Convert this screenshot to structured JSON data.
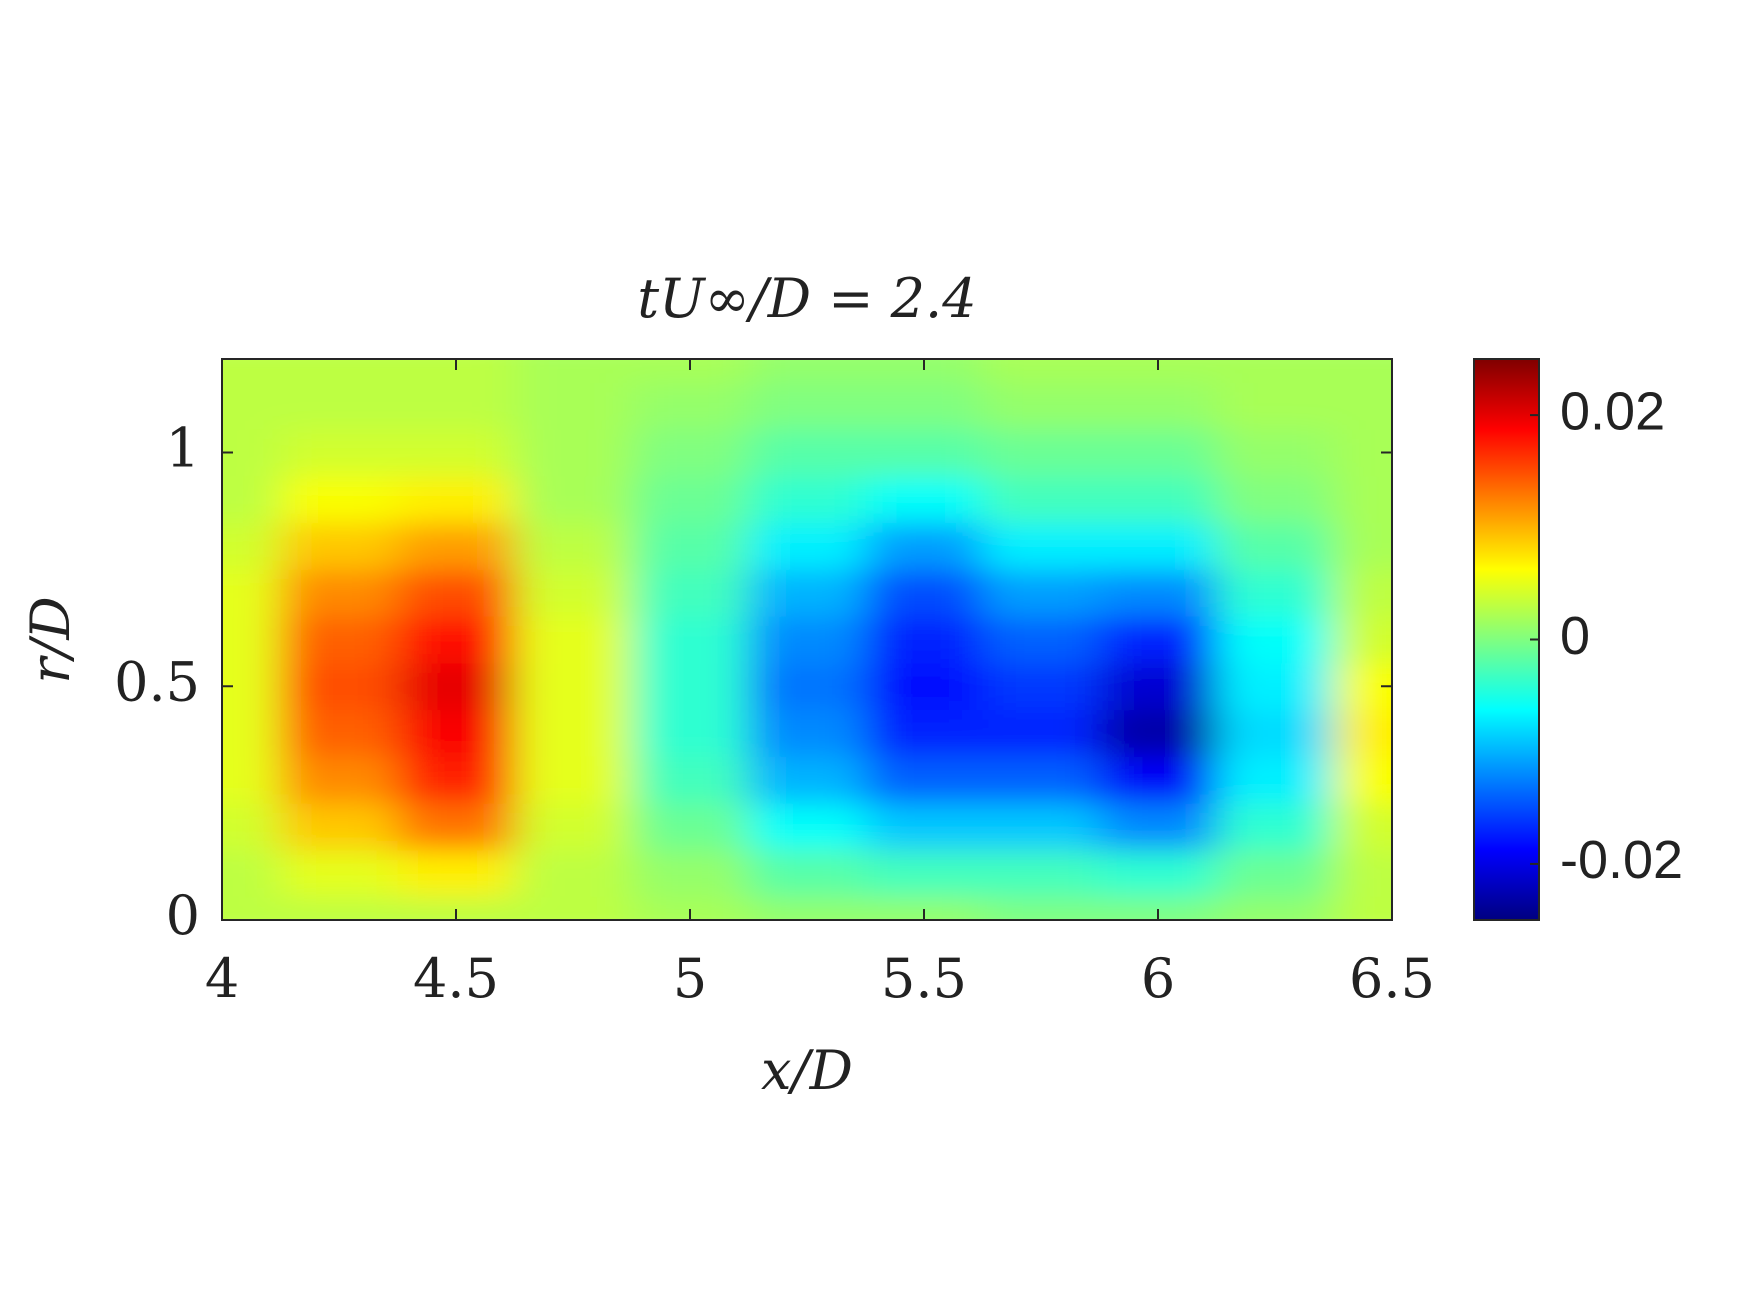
{
  "chart_data": {
    "type": "contour",
    "title": "tU∞/D = 2.4",
    "x_label": "x/D",
    "y_label": "r/D",
    "x": [
      4,
      4.25,
      4.5,
      4.75,
      5,
      5.25,
      5.5,
      5.75,
      6,
      6.25,
      6.5
    ],
    "y": [
      0,
      0.1,
      0.2,
      0.3,
      0.4,
      0.5,
      0.6,
      0.7,
      0.8,
      0.9,
      1.0,
      1.1,
      1.2
    ],
    "z": [
      [
        0.003,
        0.003,
        0.003,
        0.003,
        0.002,
        0.001,
        0.001,
        0.0,
        0.0,
        0.001,
        0.003
      ],
      [
        0.003,
        0.005,
        0.007,
        0.003,
        0.001,
        -0.002,
        -0.003,
        -0.003,
        -0.004,
        -0.001,
        0.003
      ],
      [
        0.004,
        0.009,
        0.013,
        0.004,
        -0.001,
        -0.006,
        -0.009,
        -0.009,
        -0.012,
        -0.004,
        0.004
      ],
      [
        0.005,
        0.012,
        0.017,
        0.005,
        -0.003,
        -0.01,
        -0.014,
        -0.014,
        -0.019,
        -0.007,
        0.006
      ],
      [
        0.005,
        0.014,
        0.019,
        0.005,
        -0.004,
        -0.012,
        -0.017,
        -0.017,
        -0.023,
        -0.008,
        0.007
      ],
      [
        0.005,
        0.015,
        0.02,
        0.005,
        -0.004,
        -0.013,
        -0.018,
        -0.016,
        -0.021,
        -0.007,
        0.006
      ],
      [
        0.005,
        0.014,
        0.018,
        0.005,
        -0.004,
        -0.012,
        -0.017,
        -0.014,
        -0.017,
        -0.006,
        0.004
      ],
      [
        0.005,
        0.012,
        0.015,
        0.004,
        -0.003,
        -0.01,
        -0.015,
        -0.011,
        -0.012,
        -0.004,
        0.003
      ],
      [
        0.004,
        0.009,
        0.011,
        0.003,
        -0.002,
        -0.007,
        -0.011,
        -0.007,
        -0.007,
        -0.002,
        0.002
      ],
      [
        0.003,
        0.006,
        0.007,
        0.002,
        -0.001,
        -0.004,
        -0.006,
        -0.003,
        -0.003,
        0.0,
        0.002
      ],
      [
        0.003,
        0.004,
        0.004,
        0.002,
        0.0,
        -0.002,
        -0.002,
        -0.001,
        -0.001,
        0.001,
        0.002
      ],
      [
        0.003,
        0.003,
        0.003,
        0.002,
        0.001,
        0.0,
        0.0,
        0.001,
        0.001,
        0.002,
        0.002
      ],
      [
        0.003,
        0.003,
        0.003,
        0.002,
        0.002,
        0.001,
        0.001,
        0.002,
        0.002,
        0.002,
        0.002
      ]
    ],
    "xlim": [
      4,
      6.5
    ],
    "xticks": [
      4,
      4.5,
      5,
      5.5,
      6,
      6.5
    ],
    "ylim": [
      0,
      1.2
    ],
    "yticks": [
      0,
      0.5,
      1
    ],
    "colormap": "jet",
    "clim": [
      -0.025,
      0.025
    ],
    "cticks": [
      -0.02,
      0,
      0.02
    ]
  }
}
